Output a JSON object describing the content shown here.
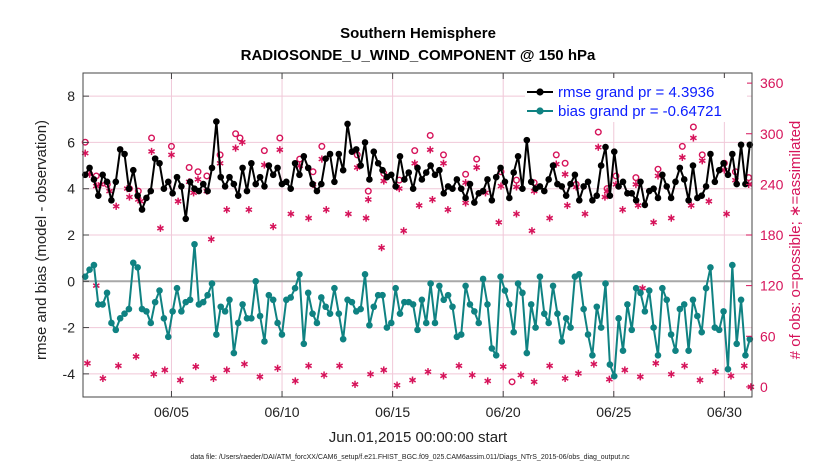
{
  "chart_data": {
    "type": "line",
    "title": "Southern Hemisphere",
    "subtitle": "RADIOSONDE_U_WIND_COMPONENT @ 150 hPa",
    "xlabel": "Jun.01,2015 00:00:00 start",
    "ylabel": "rmse and bias (model - observation)",
    "ylabel_right": "# of obs: o=possible; ∗=assimilated",
    "footnote": "data file: /Users/raeder/DAI/ATM_forcXX/CAM6_setup/f.e21.FHIST_BGC.f09_025.CAM6assim.011/Diags_NTrS_2015-06/obs_diag_output.nc",
    "x_range": [
      1.0,
      31.25
    ],
    "ylim": [
      -5,
      9
    ],
    "ylim_right": [
      -12,
      372
    ],
    "x_ticks": [
      5,
      10,
      15,
      20,
      25,
      30
    ],
    "x_tick_labels": [
      "06/05",
      "06/10",
      "06/15",
      "06/20",
      "06/25",
      "06/30"
    ],
    "y_ticks": [
      -4,
      -2,
      0,
      2,
      4,
      6,
      8
    ],
    "y_tick_labels": [
      "-4",
      "-2",
      "0",
      "2",
      "4",
      "6",
      "8"
    ],
    "y_ticks_right": [
      0,
      60,
      120,
      180,
      240,
      300,
      360
    ],
    "y_tick_labels_right": [
      "0",
      "60",
      "120",
      "180",
      "240",
      "300",
      "360"
    ],
    "grid": true,
    "legend_position": "top-right",
    "colors": {
      "rmse": "#000000",
      "bias": "#0f8282",
      "obs": "#d6135a",
      "zero_line": "#a8a8a8",
      "grid": "#f0c8d8"
    },
    "series": [
      {
        "name": "rmse",
        "legend": "rmse grand pr = 4.3936",
        "values": [
          4.6,
          4.9,
          4.4,
          3.7,
          4.6,
          4.3,
          3.5,
          4.3,
          5.7,
          5.5,
          4.0,
          4.8,
          3.7,
          3.1,
          3.6,
          3.9,
          5.3,
          5.1,
          4.0,
          4.3,
          3.8,
          4.5,
          4.1,
          2.7,
          4.3,
          4.0,
          3.9,
          4.2,
          3.9,
          4.9,
          6.9,
          4.5,
          4.1,
          4.5,
          4.2,
          3.7,
          4.9,
          3.9,
          5.1,
          4.2,
          4.5,
          4.1,
          5.0,
          4.6,
          4.9,
          4.2,
          4.3,
          4.0,
          5.1,
          4.6,
          5.4,
          4.9,
          4.2,
          3.9,
          4.2,
          5.3,
          5.5,
          4.3,
          5.5,
          4.8,
          6.8,
          5.6,
          5.7,
          5.0,
          6.0,
          4.4,
          5.6,
          5.1,
          4.8,
          4.5,
          4.6,
          4.1,
          5.4,
          4.4,
          4.7,
          4.0,
          4.9,
          4.4,
          4.7,
          5.0,
          4.6,
          4.8,
          3.8,
          4.1,
          4.0,
          4.4,
          4.0,
          3.6,
          4.2,
          3.4,
          3.8,
          3.9,
          4.4,
          3.5,
          4.5,
          4.9,
          4.3,
          3.6,
          4.7,
          5.4,
          4.0,
          6.1,
          4.3,
          4.0,
          4.1,
          3.9,
          4.4,
          5.0,
          4.2,
          4.1,
          3.7,
          4.2,
          4.6,
          3.5,
          4.1,
          4.3,
          3.5,
          3.7,
          5.0,
          5.8,
          3.7,
          5.6,
          4.1,
          4.3,
          3.8,
          3.8,
          3.5,
          4.3,
          3.3,
          3.9,
          4.0,
          3.6,
          4.6,
          4.1,
          3.6,
          4.3,
          4.9,
          4.4,
          3.5,
          5.0,
          3.6,
          3.7,
          4.1,
          5.5,
          4.3,
          4.8,
          5.1,
          4.6,
          5.5,
          4.2,
          5.9,
          4.2,
          5.9
        ]
      },
      {
        "name": "bias",
        "legend": "bias grand pr = -0.64721",
        "values": [
          0.2,
          0.5,
          0.7,
          -1.0,
          -1.0,
          -0.5,
          -1.8,
          -2.1,
          -1.6,
          -1.4,
          -1.2,
          0.8,
          0.6,
          -1.2,
          -1.3,
          -1.8,
          -0.9,
          -0.4,
          -1.6,
          -2.4,
          -1.3,
          -0.3,
          -1.3,
          -0.9,
          -0.8,
          1.6,
          -1.0,
          -0.9,
          -0.6,
          -0.1,
          -2.3,
          -1.1,
          -1.3,
          -0.8,
          -3.1,
          -1.8,
          -1.0,
          -1.6,
          -1.6,
          0.0,
          -1.5,
          -2.6,
          -0.6,
          -0.8,
          -1.8,
          -2.3,
          -0.8,
          -0.7,
          -0.3,
          0.3,
          -2.7,
          -0.5,
          -1.4,
          -1.8,
          -0.7,
          -1.1,
          -1.4,
          -0.3,
          -1.4,
          -2.5,
          -0.8,
          -0.9,
          -1.3,
          -1.2,
          0.3,
          -1.9,
          -1.1,
          -0.6,
          -0.6,
          -2.0,
          -1.8,
          -0.3,
          -1.4,
          -0.9,
          -0.9,
          -1.0,
          -2.1,
          -0.8,
          -1.8,
          -0.1,
          -1.8,
          -0.2,
          -0.8,
          -0.6,
          -1.1,
          -2.4,
          -2.3,
          -0.2,
          -1.0,
          -1.3,
          -1.8,
          0.1,
          -1.0,
          -2.9,
          -3.2,
          0.2,
          -0.4,
          -1.0,
          -2.2,
          -0.1,
          -0.5,
          -3.1,
          -1.0,
          -2.0,
          0.2,
          -1.4,
          -1.8,
          -0.2,
          -1.4,
          -2.6,
          -1.6,
          -2.0,
          0.2,
          0.3,
          -1.2,
          -2.3,
          -3.2,
          -1.1,
          -2.0,
          -0.1,
          -3.6,
          -4.1,
          -1.6,
          -3.0,
          -1.0,
          -2.1,
          -0.3,
          -0.5,
          -1.3,
          -0.4,
          -2.0,
          -3.2,
          -0.3,
          -0.8,
          -2.3,
          -3.0,
          -1.2,
          -1.0,
          -3.0,
          -0.8,
          -1.5,
          -2.2,
          -0.3,
          0.6,
          -2.0,
          -2.1,
          -1.3,
          -3.8,
          0.7,
          -2.7,
          -0.8,
          -3.2,
          -2.5
        ]
      },
      {
        "name": "obs_possible",
        "marker": "o",
        "points": [
          [
            1.1,
            290
          ],
          [
            1.6,
            250
          ],
          [
            2.1,
            240
          ],
          [
            3.1,
            235
          ],
          [
            3.5,
            232
          ],
          [
            4.1,
            295
          ],
          [
            5.0,
            285
          ],
          [
            5.8,
            260
          ],
          [
            6.2,
            255
          ],
          [
            6.6,
            250
          ],
          [
            7.2,
            275
          ],
          [
            7.9,
            300
          ],
          [
            8.1,
            295
          ],
          [
            9.2,
            280
          ],
          [
            9.9,
            295
          ],
          [
            10.8,
            270
          ],
          [
            11.4,
            255
          ],
          [
            11.8,
            285
          ],
          [
            13.4,
            275
          ],
          [
            13.9,
            232
          ],
          [
            14.6,
            253
          ],
          [
            15.3,
            245
          ],
          [
            16.0,
            280
          ],
          [
            16.7,
            298
          ],
          [
            17.3,
            275
          ],
          [
            18.3,
            252
          ],
          [
            18.8,
            270
          ],
          [
            19.9,
            255
          ],
          [
            20.6,
            245
          ],
          [
            21.4,
            242
          ],
          [
            22.4,
            275
          ],
          [
            22.8,
            265
          ],
          [
            23.3,
            240
          ],
          [
            24.3,
            302
          ],
          [
            24.7,
            235
          ],
          [
            25.1,
            250
          ],
          [
            26.0,
            248
          ],
          [
            27.0,
            258
          ],
          [
            28.1,
            285
          ],
          [
            28.6,
            308
          ],
          [
            29.0,
            275
          ],
          [
            30.0,
            265
          ],
          [
            30.5,
            255
          ],
          [
            31.1,
            248
          ],
          [
            20.4,
            6
          ]
        ]
      },
      {
        "name": "obs_assimilated",
        "marker": "*",
        "points": [
          [
            1.1,
            277
          ],
          [
            1.6,
            238
          ],
          [
            2.2,
            232
          ],
          [
            3.1,
            225
          ],
          [
            3.5,
            222
          ],
          [
            4.1,
            279
          ],
          [
            5.0,
            275
          ],
          [
            5.8,
            243
          ],
          [
            6.2,
            246
          ],
          [
            6.6,
            232
          ],
          [
            7.2,
            265
          ],
          [
            7.9,
            283
          ],
          [
            8.2,
            290
          ],
          [
            9.2,
            263
          ],
          [
            9.9,
            281
          ],
          [
            10.8,
            262
          ],
          [
            11.4,
            240
          ],
          [
            11.8,
            270
          ],
          [
            13.4,
            260
          ],
          [
            13.9,
            222
          ],
          [
            14.6,
            244
          ],
          [
            15.3,
            235
          ],
          [
            16.0,
            265
          ],
          [
            16.7,
            281
          ],
          [
            17.3,
            265
          ],
          [
            18.3,
            242
          ],
          [
            18.8,
            260
          ],
          [
            19.9,
            238
          ],
          [
            20.6,
            237
          ],
          [
            21.4,
            232
          ],
          [
            22.4,
            264
          ],
          [
            22.8,
            252
          ],
          [
            23.3,
            237
          ],
          [
            24.3,
            284
          ],
          [
            24.7,
            232
          ],
          [
            25.1,
            240
          ],
          [
            26.0,
            240
          ],
          [
            27.0,
            250
          ],
          [
            28.1,
            272
          ],
          [
            28.6,
            295
          ],
          [
            29.0,
            268
          ],
          [
            30.0,
            257
          ],
          [
            30.5,
            245
          ],
          [
            31.1,
            240
          ],
          [
            1.3,
            252
          ],
          [
            1.8,
            240
          ],
          [
            2.5,
            214
          ],
          [
            3.0,
            235
          ],
          [
            3.6,
            220
          ],
          [
            4.5,
            188
          ],
          [
            5.3,
            220
          ],
          [
            6.0,
            230
          ],
          [
            6.8,
            175
          ],
          [
            7.5,
            210
          ],
          [
            8.5,
            210
          ],
          [
            9.6,
            190
          ],
          [
            10.4,
            205
          ],
          [
            11.2,
            200
          ],
          [
            12.0,
            210
          ],
          [
            13.0,
            205
          ],
          [
            13.8,
            200
          ],
          [
            14.5,
            165
          ],
          [
            15.5,
            185
          ],
          [
            16.2,
            215
          ],
          [
            16.8,
            222
          ],
          [
            17.5,
            210
          ],
          [
            18.3,
            218
          ],
          [
            19.2,
            230
          ],
          [
            19.8,
            195
          ],
          [
            20.6,
            205
          ],
          [
            21.3,
            185
          ],
          [
            22.1,
            200
          ],
          [
            22.9,
            215
          ],
          [
            23.7,
            205
          ],
          [
            24.6,
            225
          ],
          [
            25.4,
            210
          ],
          [
            26.1,
            215
          ],
          [
            26.8,
            195
          ],
          [
            27.6,
            200
          ],
          [
            28.5,
            215
          ],
          [
            29.3,
            220
          ],
          [
            30.1,
            205
          ],
          [
            1.2,
            28
          ],
          [
            1.9,
            10
          ],
          [
            2.6,
            25
          ],
          [
            3.4,
            36
          ],
          [
            4.2,
            15
          ],
          [
            4.7,
            20
          ],
          [
            5.4,
            8
          ],
          [
            6.1,
            24
          ],
          [
            6.9,
            10
          ],
          [
            7.5,
            20
          ],
          [
            8.3,
            27
          ],
          [
            9.0,
            12
          ],
          [
            9.8,
            22
          ],
          [
            10.6,
            7
          ],
          [
            11.2,
            25
          ],
          [
            11.9,
            14
          ],
          [
            12.6,
            25
          ],
          [
            13.3,
            3
          ],
          [
            14.0,
            15
          ],
          [
            14.6,
            20
          ],
          [
            15.2,
            2
          ],
          [
            15.9,
            8
          ],
          [
            16.6,
            18
          ],
          [
            17.3,
            13
          ],
          [
            18.0,
            25
          ],
          [
            18.6,
            14
          ],
          [
            19.3,
            7
          ],
          [
            20.0,
            24
          ],
          [
            20.8,
            14
          ],
          [
            21.4,
            6
          ],
          [
            22.1,
            25
          ],
          [
            22.8,
            10
          ],
          [
            23.4,
            16
          ],
          [
            24.1,
            27
          ],
          [
            24.8,
            9
          ],
          [
            25.5,
            20
          ],
          [
            26.2,
            12
          ],
          [
            26.9,
            28
          ],
          [
            27.6,
            15
          ],
          [
            28.2,
            25
          ],
          [
            28.9,
            8
          ],
          [
            29.6,
            18
          ],
          [
            30.3,
            13
          ],
          [
            30.9,
            25
          ],
          [
            31.2,
            0
          ],
          [
            1.6,
            120
          ],
          [
            26.3,
            117
          ]
        ]
      }
    ]
  }
}
